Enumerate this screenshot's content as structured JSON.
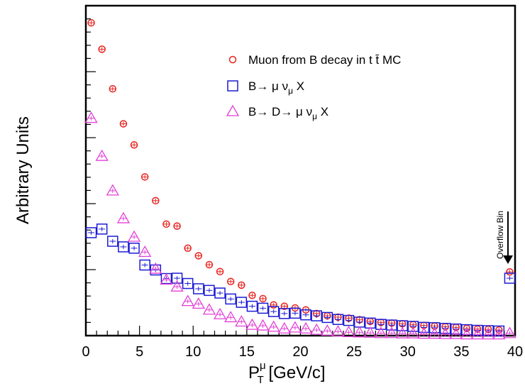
{
  "chart_data": {
    "type": "scatter",
    "xlabel_main": "P",
    "xlabel_sup": "μ",
    "xlabel_sub": "T",
    "xlabel_units": " [GeV/c]",
    "ylabel": "Arbitrary Units",
    "xlim": [
      0,
      40
    ],
    "ylim": [
      0,
      1.0
    ],
    "x_ticks": [
      0,
      5,
      10,
      15,
      20,
      25,
      30,
      35,
      40
    ],
    "y_tick_labels_shown": false,
    "grid": false,
    "legend_position": "top-right",
    "annotation": "Overflow Bin",
    "x": [
      0.5,
      1.5,
      2.5,
      3.5,
      4.5,
      5.5,
      6.5,
      7.5,
      8.5,
      9.5,
      10.5,
      11.5,
      12.5,
      13.5,
      14.5,
      15.5,
      16.5,
      17.5,
      18.5,
      19.5,
      20.5,
      21.5,
      22.5,
      23.5,
      24.5,
      25.5,
      26.5,
      27.5,
      28.5,
      29.5,
      30.5,
      31.5,
      32.5,
      33.5,
      34.5,
      35.5,
      36.5,
      37.5,
      38.5,
      39.5
    ],
    "series": [
      {
        "name": "Muon from B decay in t t̄ MC",
        "marker": "circle",
        "color": "#e8231e",
        "values": [
          0.948,
          0.868,
          0.748,
          0.642,
          0.578,
          0.481,
          0.409,
          0.338,
          0.332,
          0.265,
          0.242,
          0.215,
          0.194,
          0.164,
          0.153,
          0.122,
          0.112,
          0.093,
          0.089,
          0.084,
          0.078,
          0.067,
          0.06,
          0.056,
          0.053,
          0.048,
          0.043,
          0.04,
          0.038,
          0.036,
          0.033,
          0.031,
          0.029,
          0.027,
          0.025,
          0.022,
          0.02,
          0.019,
          0.017,
          0.193
        ]
      },
      {
        "name": "B→ μ ν_μ X",
        "marker": "square",
        "color": "#1c1cd4",
        "values": [
          0.312,
          0.323,
          0.286,
          0.269,
          0.265,
          0.214,
          0.199,
          0.173,
          0.174,
          0.158,
          0.142,
          0.137,
          0.129,
          0.111,
          0.101,
          0.089,
          0.083,
          0.073,
          0.067,
          0.068,
          0.063,
          0.06,
          0.055,
          0.049,
          0.046,
          0.041,
          0.038,
          0.034,
          0.032,
          0.03,
          0.028,
          0.025,
          0.024,
          0.022,
          0.02,
          0.018,
          0.016,
          0.015,
          0.014,
          0.174
        ]
      },
      {
        "name": "B→ D→ μ ν_μ X",
        "marker": "triangle",
        "color": "#e43fd6",
        "values": [
          0.659,
          0.544,
          0.439,
          0.355,
          0.299,
          0.253,
          0.202,
          0.169,
          0.148,
          0.104,
          0.096,
          0.078,
          0.064,
          0.055,
          0.042,
          0.032,
          0.03,
          0.026,
          0.021,
          0.024,
          0.021,
          0.017,
          0.014,
          0.012,
          0.01,
          0.009,
          0.008,
          0.007,
          0.007,
          0.006,
          0.006,
          0.005,
          0.005,
          0.004,
          0.004,
          0.003,
          0.003,
          0.003,
          0.003,
          0.007
        ]
      }
    ]
  }
}
